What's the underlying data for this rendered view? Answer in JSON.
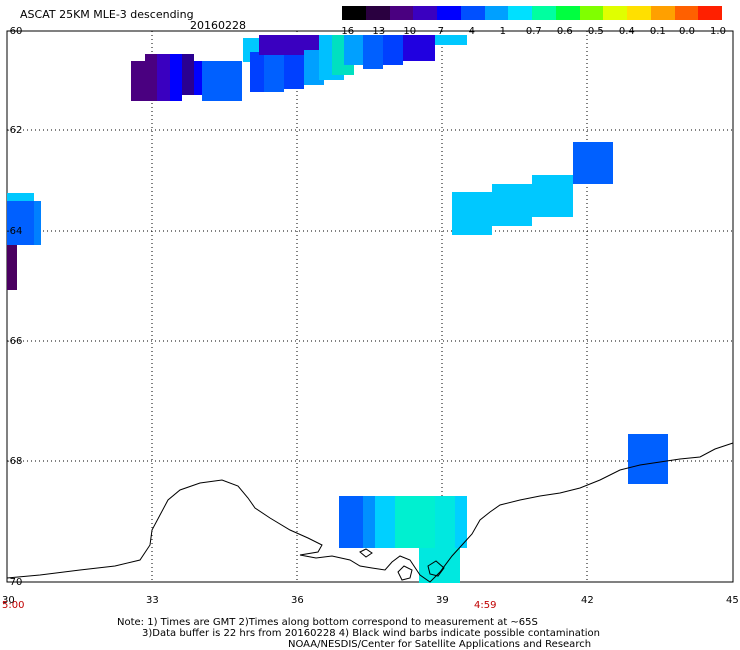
{
  "header": {
    "title": "ASCAT 25KM MLE-3 descending",
    "date": "20160228"
  },
  "colorbar": {
    "labels": [
      "-16",
      "-13",
      "-10",
      "-7",
      "-4",
      "-1",
      "-0.7",
      "-0.6",
      "-0.5",
      "-0.4",
      "-0.1",
      "0.0",
      "1.0"
    ],
    "colors": [
      "#000000",
      "#2a0040",
      "#4a0080",
      "#3a00c0",
      "#0000ff",
      "#0050ff",
      "#00a0ff",
      "#00e0ff",
      "#00ffa0",
      "#00ff40",
      "#80ff00",
      "#e0ff00",
      "#ffe000",
      "#ffa000",
      "#ff6000",
      "#ff2000"
    ]
  },
  "axes": {
    "lat_labels": [
      "-60",
      "-62",
      "-64",
      "-66",
      "-68",
      "-70"
    ],
    "lon_labels": [
      "30",
      "33",
      "36",
      "39",
      "42",
      "45"
    ],
    "time_start": "5:00",
    "time_end": "4:59"
  },
  "notes": {
    "line1": "Note: 1) Times are GMT 2)Times along bottom correspond to measurement at ~65S",
    "line2": "3)Data buffer is 22 hrs from 20160228 4) Black wind barbs indicate possible contamination",
    "line3": "NOAA/NESDIS/Center for Satellite Applications and Research"
  }
}
